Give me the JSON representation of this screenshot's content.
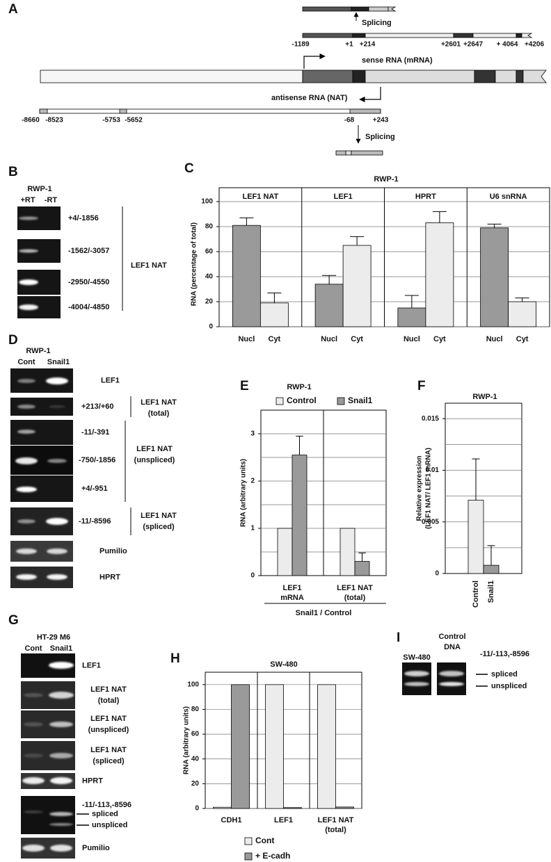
{
  "panel_a": {
    "letter": "A",
    "splicing": [
      "Splicing",
      "Splicing"
    ],
    "genomic_coords": [
      "-1189",
      "+1",
      "+214",
      "+2601",
      "+2647",
      "+ 4064",
      "+4206"
    ],
    "sense": "sense RNA (mRNA)",
    "antisense": "antisense RNA (NAT)",
    "nat_coords": [
      "-8660",
      "-8523",
      "-5753",
      "-5652",
      "-68",
      "+243"
    ]
  },
  "panel_b": {
    "letter": "B",
    "cell_line": "RWP-1",
    "lanes": [
      "+RT",
      "-RT"
    ],
    "primers": [
      "+4/-1856",
      "-1562/-3057",
      "-2950/-4550",
      "-4004/-4850"
    ],
    "target": "LEF1 NAT"
  },
  "panel_d": {
    "letter": "D",
    "cell_line": "RWP-1",
    "lanes": [
      "Cont",
      "Snail1"
    ],
    "rows": [
      "LEF1",
      "+213/+60",
      "-11/-391",
      "-750/-1856",
      "+4/-951",
      "-11/-8596",
      "Pumilio",
      "HPRT"
    ],
    "brackets": [
      [
        "LEF1 NAT",
        "(total)"
      ],
      [
        "LEF1 NAT",
        "(unspliced)"
      ],
      [
        "LEF1 NAT",
        "(spliced)"
      ]
    ]
  },
  "panel_g": {
    "letter": "G",
    "cell_line": "HT-29 M6",
    "lanes": [
      "Cont",
      "Snail1"
    ],
    "rows": [
      [
        "LEF1"
      ],
      [
        "LEF1 NAT",
        "(total)"
      ],
      [
        "LEF1 NAT",
        "(unspliced)"
      ],
      [
        "LEF1 NAT",
        "(spliced)"
      ],
      [
        "HPRT"
      ],
      [
        "-11/-113,-8596"
      ],
      [
        "Pumilio"
      ]
    ],
    "bands": [
      "spliced",
      "unspliced"
    ]
  },
  "panel_i": {
    "letter": "I",
    "lanes": [
      [
        "SW-480"
      ],
      [
        "Control",
        "DNA"
      ]
    ],
    "primers": "-11/-113,-8596",
    "bands": [
      "spliced",
      "unspliced"
    ]
  },
  "chart_data": [
    {
      "letter": "C",
      "type": "bar",
      "title": "RWP-1",
      "ylabel": "RNA (percentage of total)",
      "groups": [
        "LEF1 NAT",
        "LEF1",
        "HPRT",
        "U6 snRNA"
      ],
      "categories": [
        "Nucl",
        "Cyt",
        "Nucl",
        "Cyt",
        "Nucl",
        "Cyt",
        "Nucl",
        "Cyt"
      ],
      "values": [
        81,
        19,
        34,
        65,
        15,
        83,
        79,
        20
      ],
      "errors": [
        6,
        8,
        7,
        7,
        10,
        9,
        3,
        3
      ],
      "colors": [
        "#9a9a9a",
        "#ececec",
        "#9a9a9a",
        "#ececec",
        "#9a9a9a",
        "#ececec",
        "#9a9a9a",
        "#ececec"
      ],
      "ylim": [
        0,
        100
      ],
      "yticks": [
        0,
        20,
        40,
        60,
        80,
        100
      ],
      "grid": true
    },
    {
      "letter": "E",
      "type": "bar",
      "title": "RWP-1",
      "ylabel": "RNA (arbitrary units)",
      "xlabel": "Snail1 / Control",
      "categories": [
        [
          "LEF1",
          "mRNA"
        ],
        [
          "LEF1 NAT",
          "(total)"
        ]
      ],
      "series": [
        {
          "name": "Control",
          "color": "#ececec",
          "values": [
            1,
            1
          ]
        },
        {
          "name": "Snail1",
          "color": "#9a9a9a",
          "values": [
            2.55,
            0.3
          ],
          "errors": [
            0.4,
            0.18
          ]
        }
      ],
      "ylim": [
        0,
        3.5
      ],
      "yticks": [
        0,
        1,
        2,
        3
      ],
      "grid": false,
      "grid_values": [
        0.5,
        1,
        1.5,
        2,
        2.5,
        3
      ],
      "legend": "top"
    },
    {
      "letter": "F",
      "type": "bar",
      "title": "RWP-1",
      "ylabel": [
        "Relative expression",
        "(LEF1 NAT/ LEF1 mRNA)"
      ],
      "categories": [
        "Control",
        "Snail1"
      ],
      "values": [
        0.0071,
        0.0008
      ],
      "errors": [
        0.004,
        0.0019
      ],
      "colors": [
        "#ececec",
        "#9a9a9a"
      ],
      "ylim": [
        0,
        0.0165
      ],
      "yticks": [
        0,
        0.005,
        0.01,
        0.015
      ],
      "grid": false,
      "grid_values": [
        0.0025,
        0.005,
        0.0075,
        0.01,
        0.0125,
        0.015
      ]
    },
    {
      "letter": "H",
      "type": "bar",
      "title": "SW-480",
      "ylabel": "RNA (arbitrary units)",
      "categories": [
        [
          "CDH1"
        ],
        [
          "LEF1"
        ],
        [
          "LEF1 NAT",
          "(total)"
        ]
      ],
      "series": [
        {
          "name": "Cont",
          "color": "#ececec",
          "values": [
            1,
            100,
            100
          ]
        },
        {
          "name": "+ E-cadh",
          "color": "#9a9a9a",
          "values": [
            100,
            0.7,
            1.2
          ]
        }
      ],
      "ylim": [
        0,
        110
      ],
      "yticks": [
        0,
        20,
        40,
        60,
        80,
        100
      ],
      "grid": true,
      "legend": "bottom"
    }
  ]
}
